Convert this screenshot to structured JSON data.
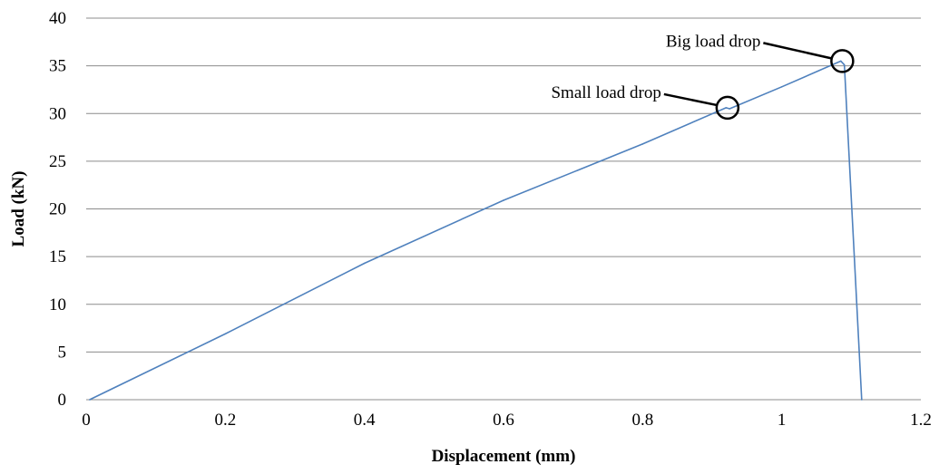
{
  "chart_data": {
    "type": "line",
    "title": "",
    "xlabel": "Displacement  (mm)",
    "ylabel": "Load (kN)",
    "xlim": [
      0,
      1.2
    ],
    "ylim": [
      0,
      40
    ],
    "x_ticks": [
      "0",
      "0.2",
      "0.4",
      "0.6",
      "0.8",
      "1",
      "1.2"
    ],
    "y_ticks": [
      "0",
      "5",
      "10",
      "15",
      "20",
      "25",
      "30",
      "35",
      "40"
    ],
    "grid": "horizontal",
    "legend": "none",
    "series": [
      {
        "color": "#4f81bd",
        "points": [
          {
            "x": 0.005,
            "y": 0.0
          },
          {
            "x": 0.2,
            "y": 6.9
          },
          {
            "x": 0.4,
            "y": 14.3
          },
          {
            "x": 0.6,
            "y": 20.9
          },
          {
            "x": 0.8,
            "y": 26.8
          },
          {
            "x": 0.92,
            "y": 30.6
          },
          {
            "x": 0.925,
            "y": 30.5
          },
          {
            "x": 1.0,
            "y": 32.8
          },
          {
            "x": 1.085,
            "y": 35.5
          },
          {
            "x": 1.09,
            "y": 35.1
          },
          {
            "x": 1.115,
            "y": 0.0
          }
        ]
      }
    ],
    "annotations": [
      {
        "text": "Big load drop",
        "x": 1.087,
        "y": 35.5
      },
      {
        "text": "Small load drop",
        "x": 0.922,
        "y": 30.6
      }
    ]
  }
}
